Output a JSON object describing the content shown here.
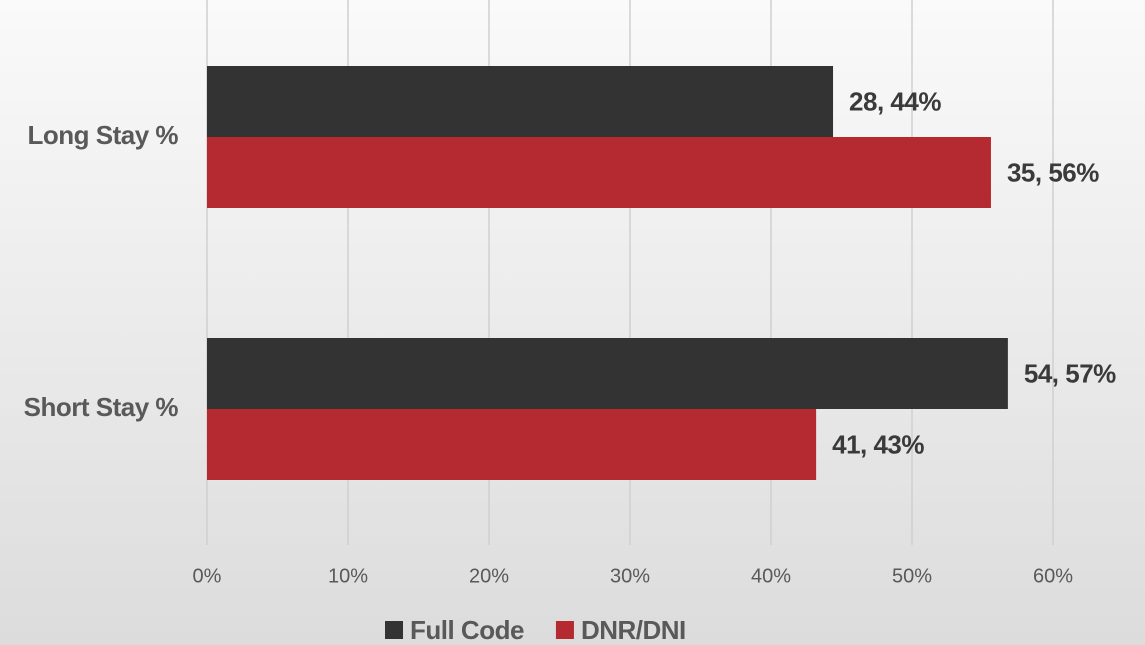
{
  "chart_data": {
    "type": "bar",
    "orientation": "horizontal",
    "categories": [
      "Long Stay %",
      "Short Stay %"
    ],
    "series": [
      {
        "name": "Full Code",
        "color": "#333333",
        "values": [
          44.4,
          56.8
        ],
        "value_labels": [
          "28, 44%",
          "54, 57%"
        ]
      },
      {
        "name": "DNR/DNI",
        "color": "#b52a30",
        "values": [
          55.6,
          43.2
        ],
        "value_labels": [
          "35, 56%",
          "41, 43%"
        ]
      }
    ],
    "xlim": [
      0,
      60
    ],
    "xticks": [
      {
        "value": 0,
        "label": "0%"
      },
      {
        "value": 10,
        "label": "10%"
      },
      {
        "value": 20,
        "label": "20%"
      },
      {
        "value": 30,
        "label": "30%"
      },
      {
        "value": 40,
        "label": "40%"
      },
      {
        "value": 50,
        "label": "50%"
      },
      {
        "value": 60,
        "label": "60%"
      }
    ],
    "grid": true,
    "legend": "bottom"
  }
}
